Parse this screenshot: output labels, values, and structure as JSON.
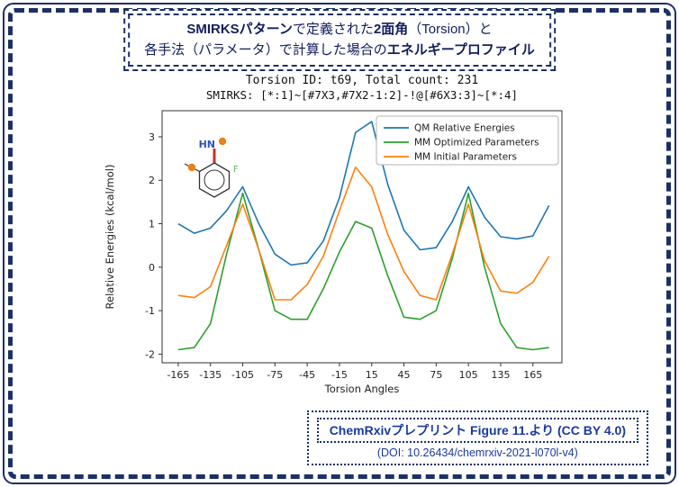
{
  "colors": {
    "frame": "#1b3068",
    "header_text": "#121f5c",
    "attribution_text": "#1a3aa0",
    "qm_line": "#1f77b4",
    "mm_optimized_line": "#2ca02c",
    "mm_initial_line": "#ff7f0e"
  },
  "header": {
    "line1_segments": [
      {
        "text": "SMIRKSパターン",
        "bold": true
      },
      {
        "text": "で定義された",
        "bold": false
      },
      {
        "text": "2面角",
        "bold": true
      },
      {
        "text": "（Torsion）と",
        "bold": false
      }
    ],
    "line2_segments": [
      {
        "text": "各手法（パラメータ）で計算した場合の",
        "bold": false
      },
      {
        "text": "エネルギープロファイル",
        "bold": true
      }
    ]
  },
  "figure": {
    "title": "Torsion ID: t69, Total count: 231",
    "smirks": "SMIRKS: [*:1]~[#7X3,#7X2-1:2]-!@[#6X3:3]~[*:4]"
  },
  "chart_data": {
    "type": "line",
    "title": "Torsion ID: t69, Total count: 231",
    "subtitle": "SMIRKS: [*:1]~[#7X3,#7X2-1:2]-!@[#6X3:3]~[*:4]",
    "xlabel": "Torsion Angles",
    "ylabel": "Relative Energies (kcal/mol)",
    "xlim": [
      -180,
      192
    ],
    "ylim": [
      -2.2,
      3.6
    ],
    "xticks": [
      -165,
      -135,
      -105,
      -75,
      -45,
      -15,
      15,
      45,
      75,
      105,
      135,
      165
    ],
    "yticks": [
      -2,
      -1,
      0,
      1,
      2,
      3
    ],
    "grid": false,
    "legend_position": "upper right",
    "x": [
      -165,
      -150,
      -135,
      -120,
      -105,
      -90,
      -75,
      -60,
      -45,
      -30,
      -15,
      0,
      15,
      30,
      45,
      60,
      75,
      90,
      105,
      120,
      135,
      150,
      165,
      180
    ],
    "series": [
      {
        "name": "QM Relative Energies",
        "color": "#1f77b4",
        "values": [
          1.0,
          0.78,
          0.9,
          1.3,
          1.85,
          1.0,
          0.3,
          0.05,
          0.1,
          0.6,
          1.6,
          3.1,
          3.35,
          1.9,
          0.85,
          0.4,
          0.45,
          1.05,
          1.85,
          1.15,
          0.7,
          0.65,
          0.72,
          1.42
        ]
      },
      {
        "name": "MM Optimized Parameters",
        "color": "#2ca02c",
        "values": [
          -1.9,
          -1.85,
          -1.3,
          0.3,
          1.7,
          0.4,
          -1.0,
          -1.2,
          -1.2,
          -0.5,
          0.35,
          1.05,
          0.9,
          -0.2,
          -1.15,
          -1.2,
          -1.0,
          0.2,
          1.7,
          0.0,
          -1.3,
          -1.85,
          -1.9,
          -1.85
        ]
      },
      {
        "name": "MM Initial Parameters",
        "color": "#ff7f0e",
        "values": [
          -0.65,
          -0.7,
          -0.45,
          0.5,
          1.45,
          0.4,
          -0.75,
          -0.75,
          -0.4,
          0.25,
          1.3,
          2.3,
          1.85,
          0.75,
          -0.1,
          -0.65,
          -0.75,
          0.3,
          1.45,
          0.15,
          -0.55,
          -0.6,
          -0.35,
          0.25
        ]
      }
    ]
  },
  "molecule": {
    "n_label": "HN",
    "f_label": "F"
  },
  "attribution": {
    "line1": "ChemRxivプレプリント Figure 11.より (CC BY 4.0)",
    "line2": "(DOI: 10.26434/chemrxiv-2021-l070l-v4)"
  }
}
